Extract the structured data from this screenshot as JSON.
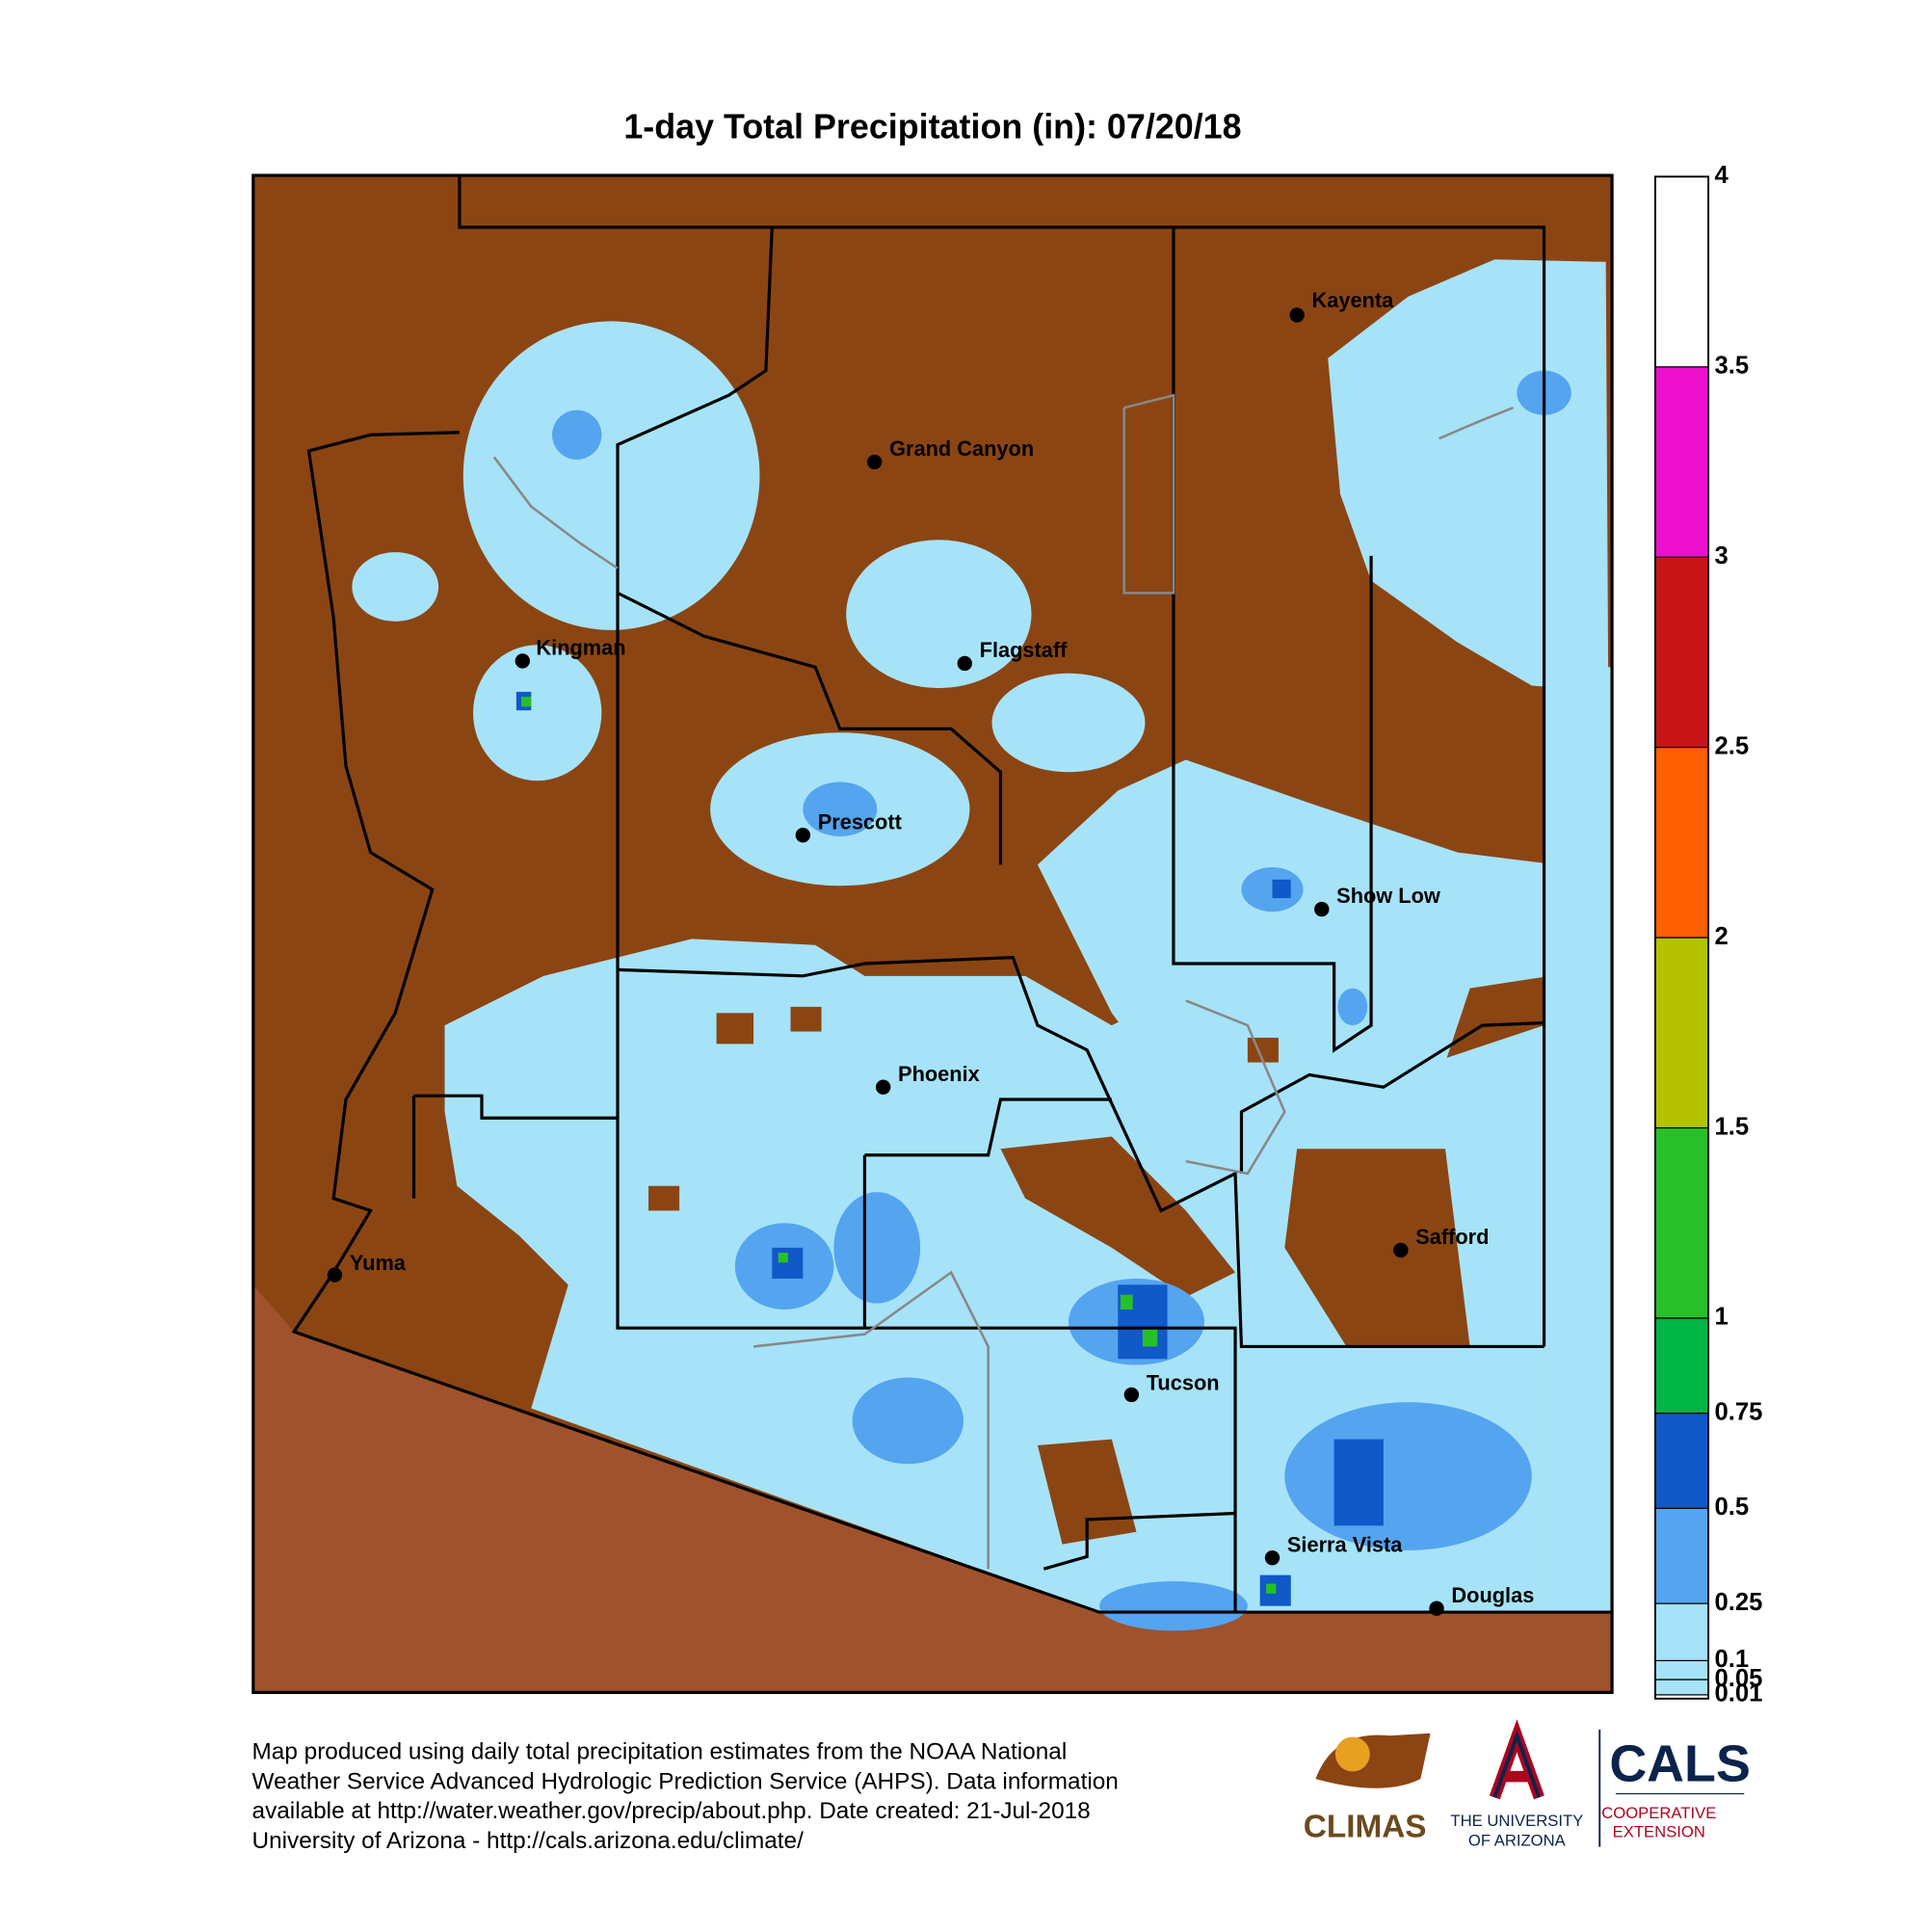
{
  "title": "1-day Total Precipitation (in): 07/20/18",
  "cities": [
    "Kayenta",
    "Grand Canyon",
    "Kingman",
    "Flagstaff",
    "Prescott",
    "Show Low",
    "Phoenix",
    "Safford",
    "Yuma",
    "Tucson",
    "Sierra Vista",
    "Douglas"
  ],
  "legend": {
    "lim": [
      0,
      4
    ],
    "bins": [
      0.01,
      0.05,
      0.1,
      0.25,
      0.5,
      0.75,
      1,
      1.5,
      2,
      2.5,
      3,
      3.5,
      4
    ],
    "colors": [
      "#a6e3f8",
      "#a6e3f8",
      "#a6e3f8",
      "#55a4ef",
      "#1158c8",
      "#00b445",
      "#28c028",
      "#b4c200",
      "#ff5f00",
      "#c81414",
      "#ee10cc",
      "#ffffff"
    ]
  },
  "footer": [
    "Map produced using daily total precipitation estimates from the NOAA National",
    "Weather Service Advanced Hydrologic Prediction Service (AHPS). Data information",
    "available at http://water.weather.gov/precip/about.php. Date created: 21-Jul-2018",
    "University of Arizona - http://cals.arizona.edu/climate/"
  ],
  "logos": {
    "climas": "CLIMAS",
    "ua": [
      "THE UNIVERSITY",
      "OF ARIZONA"
    ],
    "cals": "CALS",
    "extension": [
      "COOPERATIVE",
      "EXTENSION"
    ]
  }
}
